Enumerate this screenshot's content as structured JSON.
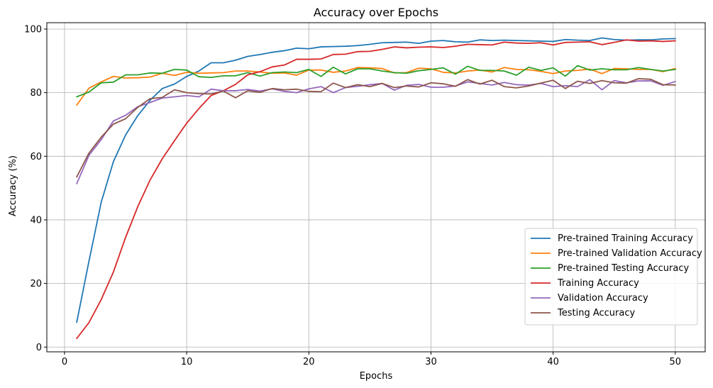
{
  "chart_data": {
    "type": "line",
    "title": "Accuracy over Epochs",
    "xlabel": "Epochs",
    "ylabel": "Accuracy (%)",
    "xlim": [
      -1.45,
      52.45
    ],
    "ylim": [
      -1.5,
      102
    ],
    "xticks": [
      0,
      10,
      20,
      30,
      40,
      50
    ],
    "yticks": [
      0,
      20,
      40,
      60,
      80,
      100
    ],
    "grid": true,
    "legend_position": "lower right",
    "x": [
      1,
      2,
      3,
      4,
      5,
      6,
      7,
      8,
      9,
      10,
      11,
      12,
      13,
      14,
      15,
      16,
      17,
      18,
      19,
      20,
      21,
      22,
      23,
      24,
      25,
      26,
      27,
      28,
      29,
      30,
      31,
      32,
      33,
      34,
      35,
      36,
      37,
      38,
      39,
      40,
      41,
      42,
      43,
      44,
      45,
      46,
      47,
      48,
      49,
      50
    ],
    "series": [
      {
        "name": "Pre-trained Training Accuracy",
        "color": "#1f77b4",
        "values": [
          7.8,
          27.0,
          45.5,
          58.3,
          66.7,
          72.8,
          77.6,
          81.3,
          82.7,
          85.1,
          86.8,
          89.4,
          89.4,
          90.2,
          91.4,
          92.0,
          92.7,
          93.2,
          94.0,
          93.8,
          94.4,
          94.5,
          94.6,
          94.8,
          95.2,
          95.7,
          95.8,
          95.9,
          95.5,
          96.2,
          96.4,
          96.0,
          95.9,
          96.6,
          96.4,
          96.5,
          96.4,
          96.3,
          96.2,
          96.1,
          96.7,
          96.5,
          96.4,
          97.2,
          96.7,
          96.5,
          96.6,
          96.6,
          96.9,
          97.0
        ]
      },
      {
        "name": "Pre-trained Validation Accuracy",
        "color": "#ff7f0e",
        "values": [
          76.1,
          81.4,
          83.4,
          85.1,
          84.6,
          84.7,
          84.9,
          86.1,
          85.4,
          86.4,
          86.1,
          86.2,
          86.3,
          86.8,
          86.8,
          86.5,
          86.1,
          86.2,
          85.5,
          87.1,
          87.1,
          86.4,
          86.8,
          87.9,
          87.8,
          87.6,
          86.2,
          86.3,
          87.7,
          87.5,
          86.4,
          86.2,
          86.8,
          87.1,
          86.5,
          87.9,
          87.3,
          87.2,
          86.7,
          86.0,
          86.8,
          87.0,
          87.4,
          86.0,
          87.6,
          87.5,
          87.3,
          87.3,
          86.6,
          87.6
        ]
      },
      {
        "name": "Pre-trained Testing Accuracy",
        "color": "#2ca02c",
        "values": [
          78.7,
          80.2,
          83.1,
          83.3,
          85.6,
          85.6,
          86.2,
          86.1,
          87.3,
          87.1,
          85.0,
          84.8,
          85.3,
          85.3,
          86.3,
          85.2,
          86.3,
          86.5,
          86.3,
          87.3,
          85.1,
          88.0,
          85.9,
          87.5,
          87.5,
          86.8,
          86.3,
          86.1,
          86.9,
          87.3,
          87.8,
          85.8,
          88.3,
          87.0,
          87.0,
          86.8,
          85.5,
          88.0,
          87.0,
          87.8,
          85.2,
          88.5,
          87.1,
          87.5,
          87.2,
          87.2,
          87.9,
          87.3,
          86.8,
          87.3
        ]
      },
      {
        "name": "Training Accuracy",
        "color": "#d62728",
        "values": [
          2.7,
          7.7,
          14.9,
          23.6,
          34.5,
          44.2,
          52.5,
          59.2,
          64.9,
          70.4,
          75.0,
          79.1,
          80.6,
          82.6,
          85.6,
          86.6,
          88.1,
          88.7,
          90.5,
          90.5,
          90.6,
          92.0,
          92.1,
          92.9,
          93.0,
          93.6,
          94.4,
          94.1,
          94.3,
          94.4,
          94.2,
          94.6,
          95.2,
          95.1,
          95.0,
          95.9,
          95.6,
          95.5,
          95.7,
          95.0,
          95.8,
          95.9,
          96.0,
          95.1,
          95.8,
          96.6,
          96.2,
          96.3,
          96.1,
          96.3
        ]
      },
      {
        "name": "Validation Accuracy",
        "color": "#9467bd",
        "values": [
          51.4,
          60.3,
          65.2,
          71.1,
          72.9,
          75.6,
          76.9,
          78.3,
          78.7,
          79.1,
          78.7,
          81.1,
          80.6,
          80.6,
          81.0,
          80.5,
          81.2,
          80.4,
          80.0,
          81.2,
          81.9,
          80.0,
          81.6,
          82.0,
          82.5,
          82.9,
          80.8,
          82.3,
          82.6,
          81.7,
          81.7,
          82.1,
          83.4,
          82.9,
          82.4,
          83.2,
          82.5,
          82.4,
          82.9,
          81.9,
          82.2,
          81.9,
          84.1,
          80.9,
          83.8,
          83.1,
          83.7,
          83.7,
          82.3,
          83.5
        ]
      },
      {
        "name": "Testing Accuracy",
        "color": "#8c564b",
        "values": [
          53.5,
          61.0,
          66.0,
          70.1,
          71.8,
          75.4,
          78.1,
          78.5,
          80.9,
          80.0,
          79.7,
          79.6,
          80.5,
          78.4,
          80.6,
          80.1,
          81.3,
          80.9,
          81.1,
          80.4,
          80.3,
          83.0,
          81.6,
          82.5,
          81.9,
          82.9,
          81.6,
          82.1,
          81.8,
          83.1,
          82.8,
          82.0,
          84.1,
          82.7,
          83.9,
          81.9,
          81.5,
          82.1,
          83.0,
          83.9,
          81.3,
          83.6,
          82.9,
          83.8,
          83.1,
          83.0,
          84.4,
          84.2,
          82.5,
          82.4
        ]
      }
    ]
  }
}
